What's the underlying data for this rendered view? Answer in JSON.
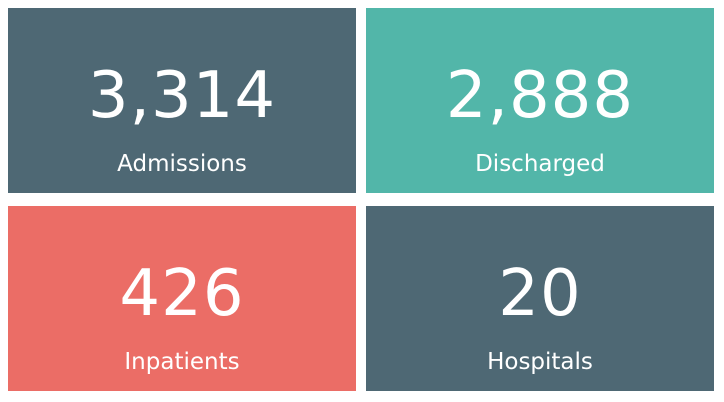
{
  "cards": [
    {
      "value": "3,314",
      "label": "Admissions",
      "color": "#4e6874"
    },
    {
      "value": "2,888",
      "label": "Discharged",
      "color": "#52b6a9"
    },
    {
      "value": "426",
      "label": "Inpatients",
      "color": "#eb6d66"
    },
    {
      "value": "20",
      "label": "Hospitals",
      "color": "#4e6874"
    }
  ]
}
